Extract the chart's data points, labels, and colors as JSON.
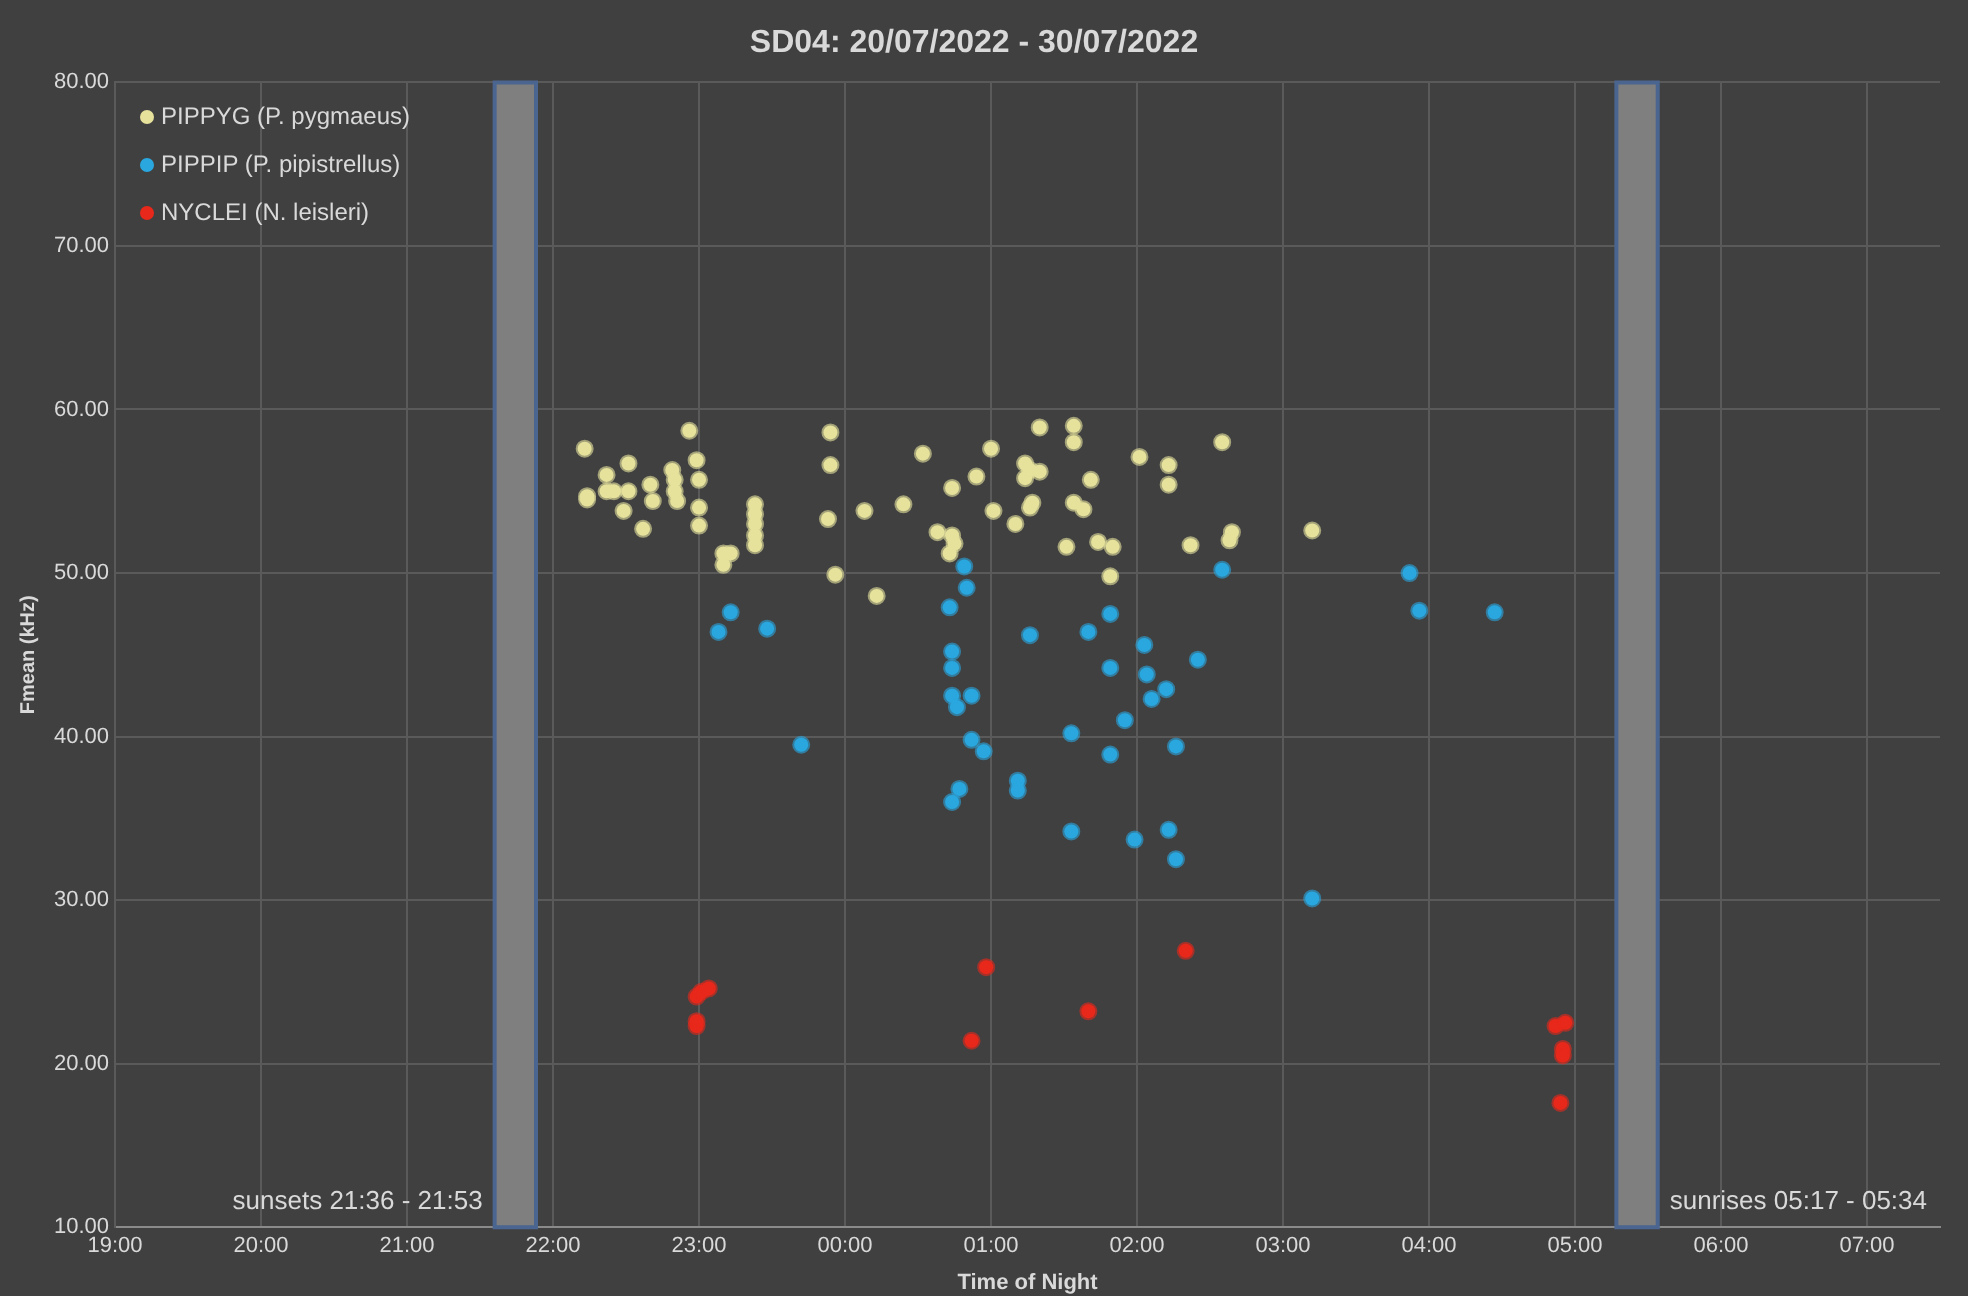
{
  "chart_data": {
    "type": "scatter",
    "title": "SD04: 20/07/2022 - 30/07/2022",
    "xlabel": "Time of Night",
    "ylabel": "Fmean (kHz)",
    "xlim": [
      "2022-07-20T19:00",
      "2022-07-21T07:30"
    ],
    "ylim": [
      10,
      80
    ],
    "xticks": [
      {
        "value": "2022-07-20T19:00",
        "label": "19:00"
      },
      {
        "value": "2022-07-20T20:00",
        "label": "20:00"
      },
      {
        "value": "2022-07-20T21:00",
        "label": "21:00"
      },
      {
        "value": "2022-07-20T22:00",
        "label": "22:00"
      },
      {
        "value": "2022-07-20T23:00",
        "label": "23:00"
      },
      {
        "value": "2022-07-21T00:00",
        "label": "00:00"
      },
      {
        "value": "2022-07-21T01:00",
        "label": "01:00"
      },
      {
        "value": "2022-07-21T02:00",
        "label": "02:00"
      },
      {
        "value": "2022-07-21T03:00",
        "label": "03:00"
      },
      {
        "value": "2022-07-21T04:00",
        "label": "04:00"
      },
      {
        "value": "2022-07-21T05:00",
        "label": "05:00"
      },
      {
        "value": "2022-07-21T06:00",
        "label": "06:00"
      },
      {
        "value": "2022-07-21T07:00",
        "label": "07:00"
      }
    ],
    "yticks": [
      {
        "value": 10,
        "label": "10.00"
      },
      {
        "value": 20,
        "label": "20.00"
      },
      {
        "value": 30,
        "label": "30.00"
      },
      {
        "value": 40,
        "label": "40.00"
      },
      {
        "value": 50,
        "label": "50.00"
      },
      {
        "value": 60,
        "label": "60.00"
      },
      {
        "value": 70,
        "label": "70.00"
      },
      {
        "value": 80,
        "label": "80.00"
      }
    ],
    "grid": true,
    "legend": "top left",
    "marker": "circle",
    "bands": [
      {
        "axis": "x",
        "from": "2022-07-20T21:36",
        "to": "2022-07-20T21:53",
        "label": "sunsets 21:36 - 21:53",
        "color": "#7f7f7f"
      },
      {
        "axis": "x",
        "from": "2022-07-21T05:17",
        "to": "2022-07-21T05:34",
        "label": "sunrises 05:17 - 05:34",
        "color": "#7f7f7f"
      }
    ],
    "series": [
      {
        "name": "PIPPYG (P. pygmaeus)",
        "color": "#e6e29c",
        "x": [
          "2022-07-20T22:13",
          "2022-07-20T22:14",
          "2022-07-20T22:14",
          "2022-07-20T22:22",
          "2022-07-20T22:22",
          "2022-07-20T22:25",
          "2022-07-20T22:29",
          "2022-07-20T22:31",
          "2022-07-20T22:31",
          "2022-07-20T22:37",
          "2022-07-20T22:40",
          "2022-07-20T22:41",
          "2022-07-20T22:49",
          "2022-07-20T22:50",
          "2022-07-20T22:50",
          "2022-07-20T22:51",
          "2022-07-20T22:56",
          "2022-07-20T22:59",
          "2022-07-20T23:00",
          "2022-07-20T23:00",
          "2022-07-20T23:00",
          "2022-07-20T23:10",
          "2022-07-20T23:13",
          "2022-07-20T23:10",
          "2022-07-20T23:23",
          "2022-07-20T23:23",
          "2022-07-20T23:23",
          "2022-07-20T23:23",
          "2022-07-20T23:23",
          "2022-07-20T23:53",
          "2022-07-20T23:54",
          "2022-07-20T23:54",
          "2022-07-20T23:56",
          "2022-07-21T00:08",
          "2022-07-21T00:13",
          "2022-07-21T00:24",
          "2022-07-21T00:32",
          "2022-07-21T00:38",
          "2022-07-21T00:44",
          "2022-07-21T00:44",
          "2022-07-21T00:45",
          "2022-07-21T00:43",
          "2022-07-21T00:54",
          "2022-07-21T01:00",
          "2022-07-21T01:01",
          "2022-07-21T01:10",
          "2022-07-21T01:14",
          "2022-07-21T01:16",
          "2022-07-21T01:14",
          "2022-07-21T01:20",
          "2022-07-21T01:16",
          "2022-07-21T01:17",
          "2022-07-21T01:20",
          "2022-07-21T01:31",
          "2022-07-21T01:34",
          "2022-07-21T01:34",
          "2022-07-21T01:34",
          "2022-07-21T01:38",
          "2022-07-21T01:41",
          "2022-07-21T01:44",
          "2022-07-21T01:49",
          "2022-07-21T01:50",
          "2022-07-21T02:01",
          "2022-07-21T02:13",
          "2022-07-21T02:13",
          "2022-07-21T02:22",
          "2022-07-21T02:35",
          "2022-07-21T02:38",
          "2022-07-21T02:39",
          "2022-07-21T03:12"
        ],
        "values": [
          57.6,
          54.7,
          54.5,
          56.0,
          55.0,
          55.0,
          53.8,
          56.7,
          55.0,
          52.7,
          55.4,
          54.4,
          56.3,
          55.7,
          55.0,
          54.4,
          58.7,
          56.9,
          55.7,
          54.0,
          52.9,
          51.2,
          51.2,
          50.5,
          54.2,
          53.6,
          53.0,
          52.3,
          51.7,
          53.3,
          58.6,
          56.6,
          49.9,
          53.8,
          48.6,
          54.2,
          57.3,
          52.5,
          55.2,
          52.3,
          51.8,
          51.2,
          55.9,
          57.6,
          53.8,
          53.0,
          56.7,
          56.3,
          55.8,
          56.2,
          54.0,
          54.3,
          58.9,
          51.6,
          59.0,
          58.0,
          54.3,
          53.9,
          55.7,
          51.9,
          49.8,
          51.6,
          57.1,
          56.6,
          55.4,
          51.7,
          58.0,
          52.0,
          52.5,
          52.6
        ]
      },
      {
        "name": "PIPPIP (P. pipistrellus)",
        "color": "#2aa7df",
        "x": [
          "2022-07-20T23:08",
          "2022-07-20T23:13",
          "2022-07-20T23:28",
          "2022-07-20T23:42",
          "2022-07-21T00:49",
          "2022-07-21T00:50",
          "2022-07-21T00:43",
          "2022-07-21T00:44",
          "2022-07-21T00:44",
          "2022-07-21T00:44",
          "2022-07-21T00:52",
          "2022-07-21T00:46",
          "2022-07-21T00:52",
          "2022-07-21T00:57",
          "2022-07-21T00:47",
          "2022-07-21T00:44",
          "2022-07-21T01:11",
          "2022-07-21T01:11",
          "2022-07-21T01:16",
          "2022-07-21T01:33",
          "2022-07-21T01:33",
          "2022-07-21T01:40",
          "2022-07-21T01:49",
          "2022-07-21T01:49",
          "2022-07-21T01:49",
          "2022-07-21T01:55",
          "2022-07-21T01:59",
          "2022-07-21T02:03",
          "2022-07-21T02:04",
          "2022-07-21T02:06",
          "2022-07-21T02:12",
          "2022-07-21T02:16",
          "2022-07-21T02:13",
          "2022-07-21T02:16",
          "2022-07-21T02:25",
          "2022-07-21T02:35",
          "2022-07-21T03:12",
          "2022-07-21T03:52",
          "2022-07-21T03:56",
          "2022-07-21T04:27"
        ],
        "values": [
          46.4,
          47.6,
          46.6,
          39.5,
          50.4,
          49.1,
          47.9,
          45.2,
          44.2,
          42.5,
          42.5,
          41.8,
          39.8,
          39.1,
          36.8,
          36.0,
          37.3,
          36.7,
          46.2,
          40.2,
          34.2,
          46.4,
          47.5,
          44.2,
          38.9,
          41.0,
          33.7,
          45.6,
          43.8,
          42.3,
          42.9,
          39.4,
          34.3,
          32.5,
          44.7,
          50.2,
          30.1,
          50.0,
          47.7,
          47.6
        ]
      },
      {
        "name": "NYCLEI (N. leisleri)",
        "color": "#e8281a",
        "x": [
          "2022-07-20T22:59",
          "2022-07-20T22:59",
          "2022-07-20T22:59",
          "2022-07-20T23:01",
          "2022-07-20T23:04",
          "2022-07-21T00:52",
          "2022-07-21T00:58",
          "2022-07-21T01:40",
          "2022-07-21T02:20",
          "2022-07-21T04:52",
          "2022-07-21T04:56",
          "2022-07-21T04:55",
          "2022-07-21T04:55",
          "2022-07-21T04:54"
        ],
        "values": [
          22.3,
          22.6,
          24.1,
          24.4,
          24.6,
          21.4,
          25.9,
          23.2,
          26.9,
          22.3,
          22.5,
          20.9,
          20.5,
          17.6
        ]
      }
    ]
  }
}
